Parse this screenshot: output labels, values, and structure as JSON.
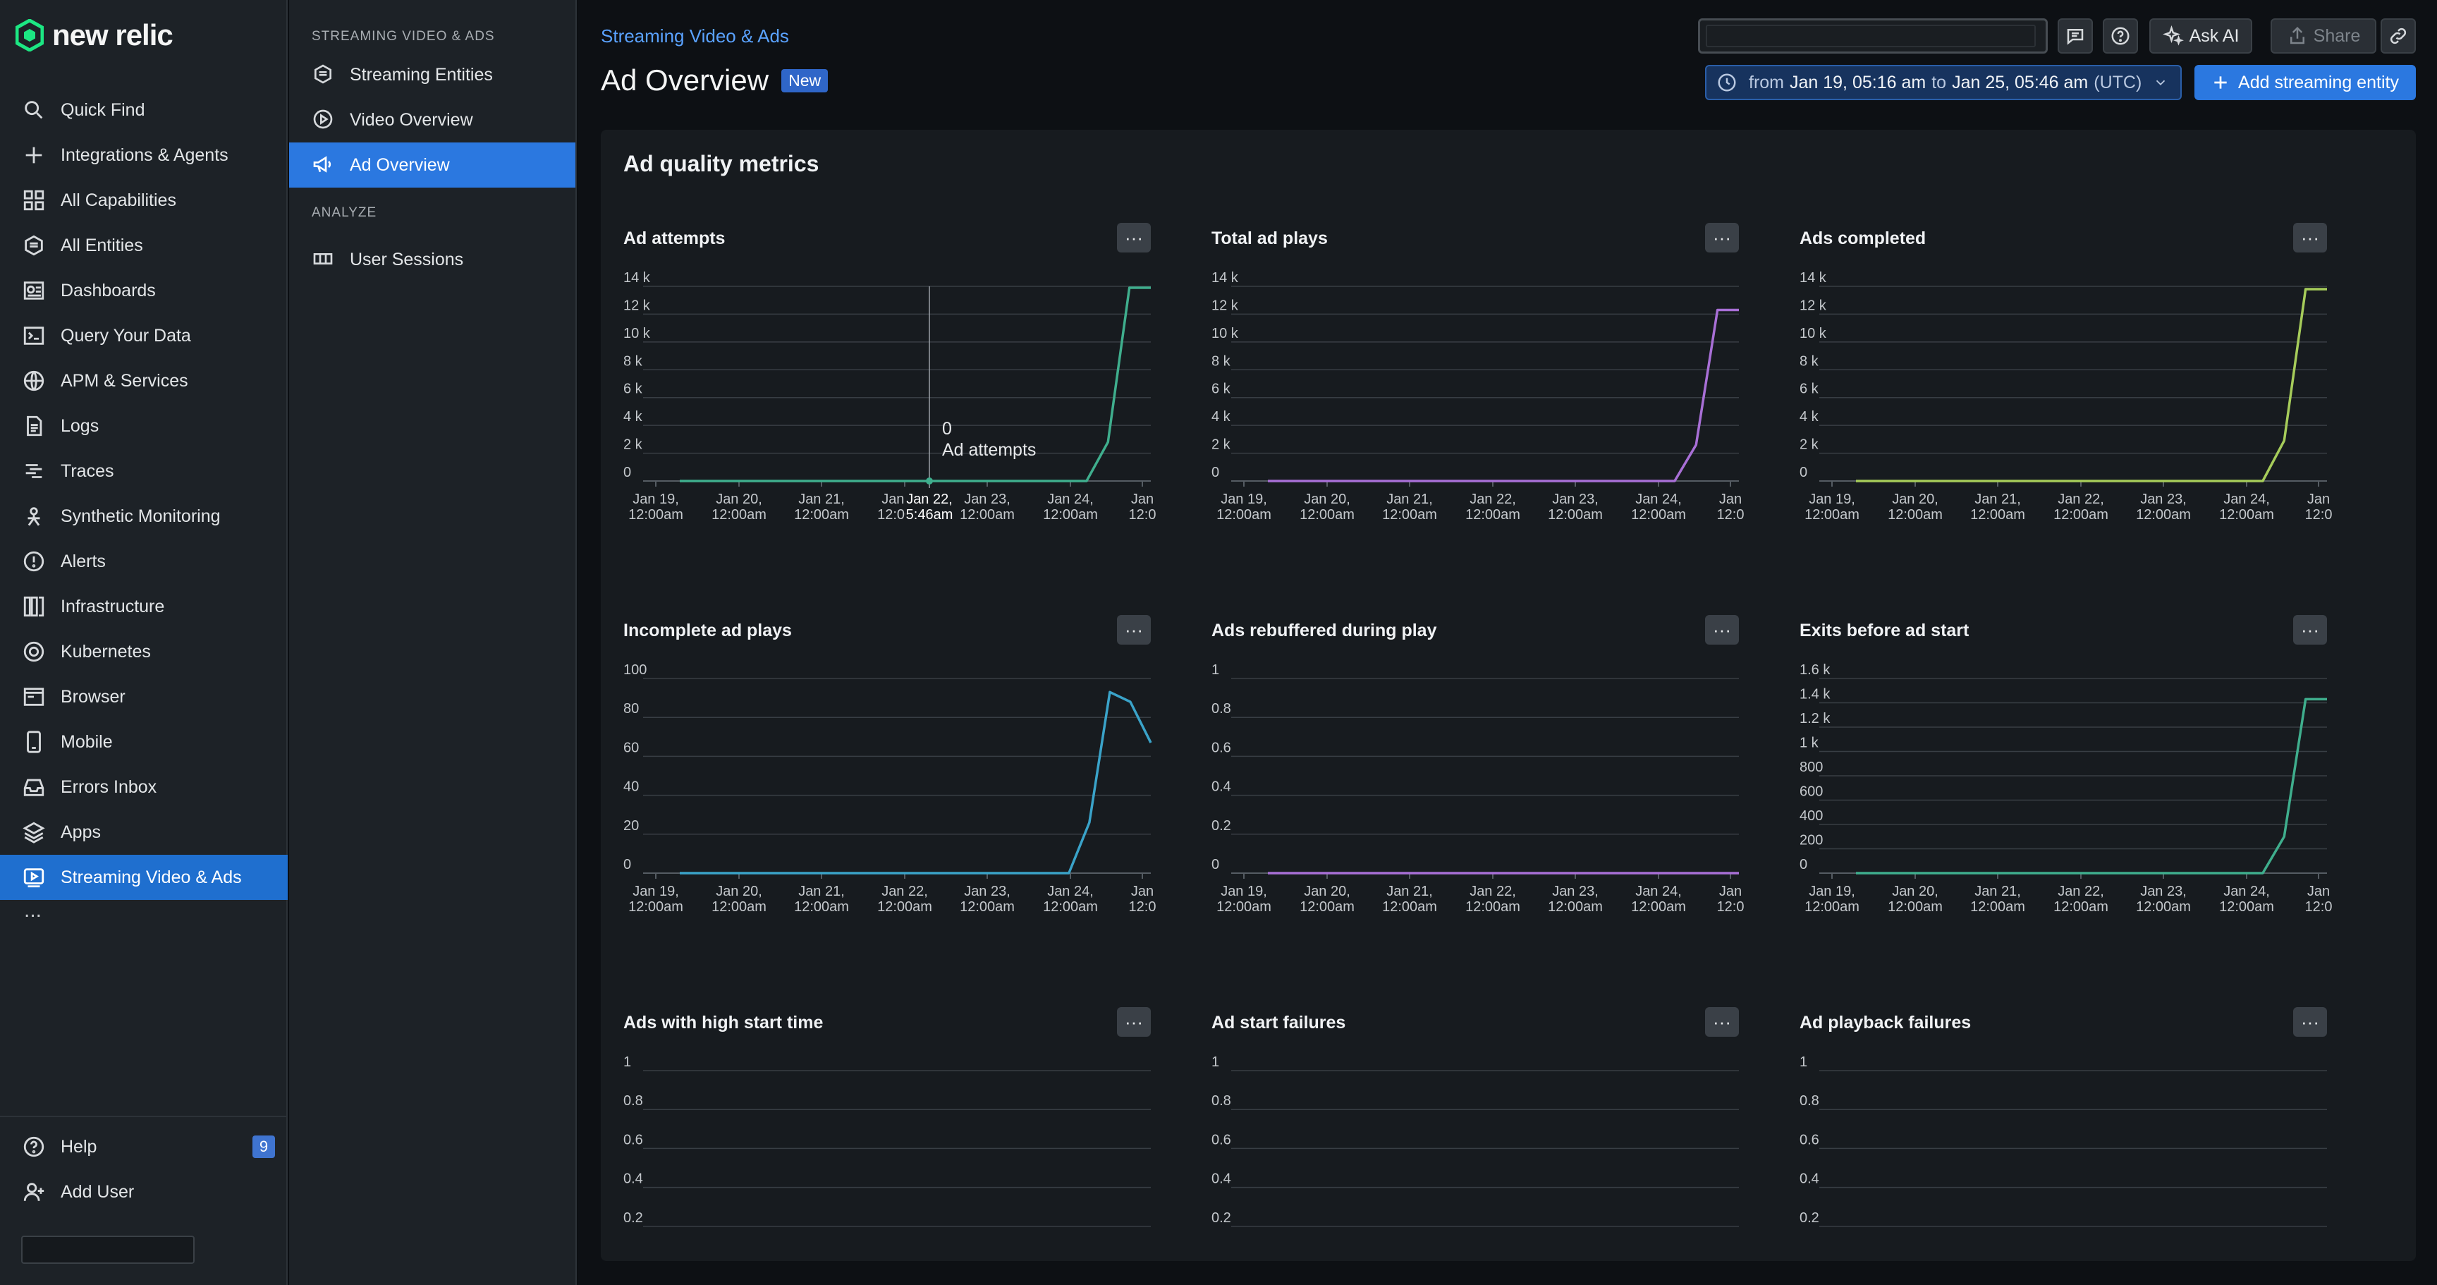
{
  "brand": {
    "name": "new relic"
  },
  "nav": {
    "items": [
      {
        "label": "Quick Find",
        "icon": "search-icon"
      },
      {
        "label": "Integrations & Agents",
        "icon": "plus-icon"
      },
      {
        "label": "All Capabilities",
        "icon": "grid-icon"
      },
      {
        "label": "All Entities",
        "icon": "entities-icon"
      },
      {
        "label": "Dashboards",
        "icon": "dashboard-icon"
      },
      {
        "label": "Query Your Data",
        "icon": "terminal-icon"
      },
      {
        "label": "APM & Services",
        "icon": "globe-icon"
      },
      {
        "label": "Logs",
        "icon": "document-icon"
      },
      {
        "label": "Traces",
        "icon": "traces-icon"
      },
      {
        "label": "Synthetic Monitoring",
        "icon": "robot-icon"
      },
      {
        "label": "Alerts",
        "icon": "alert-icon"
      },
      {
        "label": "Infrastructure",
        "icon": "server-icon"
      },
      {
        "label": "Kubernetes",
        "icon": "kubernetes-icon"
      },
      {
        "label": "Browser",
        "icon": "browser-icon"
      },
      {
        "label": "Mobile",
        "icon": "mobile-icon"
      },
      {
        "label": "Errors Inbox",
        "icon": "inbox-icon"
      },
      {
        "label": "Apps",
        "icon": "layers-icon"
      },
      {
        "label": "Streaming Video & Ads",
        "icon": "streaming-icon",
        "active": true
      }
    ],
    "more": "...",
    "bottom": [
      {
        "label": "Help",
        "icon": "help-icon",
        "badge": "9"
      },
      {
        "label": "Add User",
        "icon": "add-user-icon"
      }
    ]
  },
  "subnav": {
    "heading1": "STREAMING VIDEO & ADS",
    "items1": [
      {
        "label": "Streaming Entities",
        "icon": "entities-icon"
      },
      {
        "label": "Video Overview",
        "icon": "play-icon"
      },
      {
        "label": "Ad Overview",
        "icon": "megaphone-icon",
        "active": true
      }
    ],
    "heading2": "ANALYZE",
    "items2": [
      {
        "label": "User Sessions",
        "icon": "sessions-icon"
      }
    ]
  },
  "header": {
    "breadcrumb": "Streaming Video & Ads",
    "title": "Ad Overview",
    "badge": "New",
    "ask_ai": "Ask AI",
    "share": "Share",
    "time": {
      "from_label": "from",
      "from": "Jan 19, 05:16 am",
      "to_label": "to",
      "to": "Jan 25, 05:46 am",
      "tz": "(UTC)"
    },
    "add_entity": "Add streaming entity"
  },
  "section": {
    "title": "Ad quality metrics",
    "menu_label": "···"
  },
  "x_ticks": [
    [
      "Jan 19,",
      "12:00am"
    ],
    [
      "Jan 20,",
      "12:00am"
    ],
    [
      "Jan 21,",
      "12:00am"
    ],
    [
      "Jan 22,",
      "12:00am"
    ],
    [
      "Jan 23,",
      "12:00am"
    ],
    [
      "Jan 24,",
      "12:00am"
    ],
    [
      "Jan",
      "12:0"
    ]
  ],
  "colors": {
    "teal": "#3fae8d",
    "purple": "#a86fd6",
    "green": "#a6cc5a",
    "cyan": "#3aa3c9",
    "accent": "#2b78e0"
  },
  "widgets": [
    {
      "title": "Ad attempts",
      "yticks": [
        "14 k",
        "12 k",
        "10 k",
        "8 k",
        "6 k",
        "4 k",
        "2 k",
        "0"
      ],
      "ymax": 14000,
      "color": "#3fae8d",
      "values": [
        0,
        0,
        0,
        0,
        0,
        0,
        0,
        0,
        0,
        0,
        0,
        0,
        0,
        0,
        0,
        0,
        0,
        0,
        0,
        0,
        2800,
        13900,
        13900
      ],
      "tooltip": {
        "value": "0",
        "label": "Ad attempts",
        "date": "Jan 22,",
        "time": "5:46am"
      }
    },
    {
      "title": "Total ad plays",
      "yticks": [
        "14 k",
        "12 k",
        "10 k",
        "8 k",
        "6 k",
        "4 k",
        "2 k",
        "0"
      ],
      "ymax": 14000,
      "color": "#a86fd6",
      "values": [
        0,
        0,
        0,
        0,
        0,
        0,
        0,
        0,
        0,
        0,
        0,
        0,
        0,
        0,
        0,
        0,
        0,
        0,
        0,
        0,
        2600,
        12300,
        12300
      ]
    },
    {
      "title": "Ads completed",
      "yticks": [
        "14 k",
        "12 k",
        "10 k",
        "8 k",
        "6 k",
        "4 k",
        "2 k",
        "0"
      ],
      "ymax": 14000,
      "color": "#a6cc5a",
      "values": [
        0,
        0,
        0,
        0,
        0,
        0,
        0,
        0,
        0,
        0,
        0,
        0,
        0,
        0,
        0,
        0,
        0,
        0,
        0,
        0,
        2900,
        13800,
        13800
      ]
    },
    {
      "title": "Incomplete ad plays",
      "yticks": [
        "100",
        "80",
        "60",
        "40",
        "20",
        "0"
      ],
      "ymax": 100,
      "color": "#3aa3c9",
      "values": [
        0,
        0,
        0,
        0,
        0,
        0,
        0,
        0,
        0,
        0,
        0,
        0,
        0,
        0,
        0,
        0,
        0,
        0,
        0,
        0,
        26,
        93,
        88,
        67
      ]
    },
    {
      "title": "Ads rebuffered during play",
      "yticks": [
        "1",
        "0.8",
        "0.6",
        "0.4",
        "0.2",
        "0"
      ],
      "ymax": 1,
      "color": "#a86fd6",
      "values": [
        0,
        0,
        0,
        0,
        0,
        0,
        0,
        0,
        0,
        0,
        0,
        0,
        0,
        0,
        0,
        0,
        0,
        0,
        0,
        0,
        0,
        0,
        0,
        0
      ]
    },
    {
      "title": "Exits before ad start",
      "yticks": [
        "1.6 k",
        "1.4 k",
        "1.2 k",
        "1 k",
        "800",
        "600",
        "400",
        "200",
        "0"
      ],
      "ymax": 1600,
      "color": "#3fae8d",
      "values": [
        0,
        0,
        0,
        0,
        0,
        0,
        0,
        0,
        0,
        0,
        0,
        0,
        0,
        0,
        0,
        0,
        0,
        0,
        0,
        0,
        300,
        1430,
        1430
      ]
    },
    {
      "title": "Ads with high start time",
      "yticks": [
        "1",
        "0.8",
        "0.6",
        "0.4",
        "0.2"
      ],
      "ymax": 1,
      "color": "#3fae8d",
      "values": []
    },
    {
      "title": "Ad start failures",
      "yticks": [
        "1",
        "0.8",
        "0.6",
        "0.4",
        "0.2"
      ],
      "ymax": 1,
      "color": "#3fae8d",
      "values": []
    },
    {
      "title": "Ad playback failures",
      "yticks": [
        "1",
        "0.8",
        "0.6",
        "0.4",
        "0.2"
      ],
      "ymax": 1,
      "color": "#3fae8d",
      "values": []
    }
  ]
}
